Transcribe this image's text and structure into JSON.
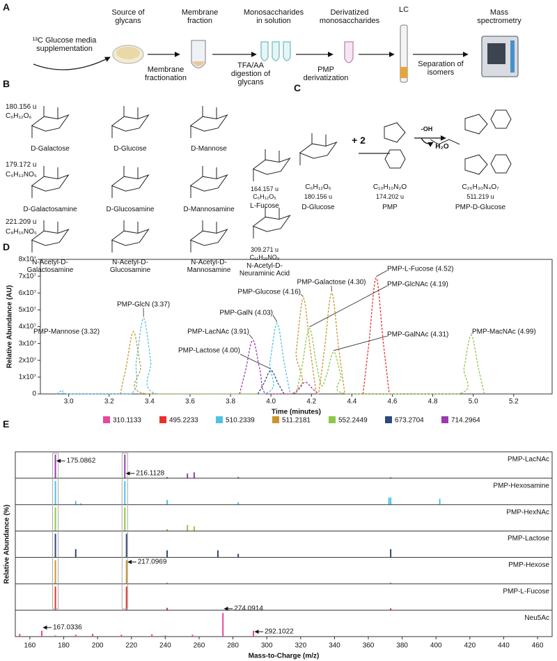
{
  "panel_a": {
    "label": "A",
    "steps": [
      "¹³C Glucose media supplementation",
      "Source of glycans",
      "Membrane fraction",
      "Membrane fractionation",
      "Monosaccharides in solution",
      "TFA/AA digestion of glycans",
      "Derivatized monosaccharides",
      "PMP derivatization",
      "LC",
      "Separation of isomers",
      "Mass spectrometry"
    ]
  },
  "panel_b": {
    "label": "B",
    "groups": [
      {
        "mass": "180.156 u",
        "formula": "C₆H₁₂O₆",
        "names": [
          "D-Galactose",
          "D-Glucose",
          "D-Mannose"
        ]
      },
      {
        "mass": "179.172 u",
        "formula": "C₆H₁₃NO₅",
        "names": [
          "D-Galactosamine",
          "D-Glucosamine",
          "D-Mannosamine"
        ]
      },
      {
        "mass": "221.209 u",
        "formula": "C₈H₁₅NO₆",
        "names": [
          "N-Acetyl-D-Galactosamine",
          "N-Acetyl-D-Glucosamine",
          "N-Acetyl-D-Mannosamine"
        ]
      },
      {
        "mass": "164.157 u",
        "formula": "C₆H₁₂O₅",
        "names": [
          "L-Fucose"
        ]
      },
      {
        "mass": "309.271 u",
        "formula": "C₁₁H₁₉NO₉",
        "names": [
          "N-Acetyl-D-Neuraminic Acid"
        ]
      }
    ]
  },
  "panel_c": {
    "label": "C",
    "reagent": "+ 2",
    "condition": "-OH",
    "byproduct": "H₂O",
    "compounds": [
      {
        "formula": "C₆H₁₂O₆",
        "mass": "180.156 u",
        "name": "D-Glucose"
      },
      {
        "formula": "C₁₀H₁₀N₂O",
        "mass": "174.202 u",
        "name": "PMP"
      },
      {
        "formula": "C₂₆H₃₀N₄O₇",
        "mass": "511.219 u",
        "name": "PMP-D-Glucose"
      }
    ]
  },
  "chart_data": [
    {
      "type": "line",
      "panel": "D",
      "xlabel": "Time (minutes)",
      "ylabel": "Relative Abundance (AU)",
      "xlim": [
        2.86,
        5.39
      ],
      "ylim": [
        0,
        80000000
      ],
      "xticks": [
        {
          "value": 3,
          "label": "3.0"
        },
        {
          "value": 3.2,
          "label": "3.2"
        },
        {
          "value": 3.4,
          "label": "3.4"
        },
        {
          "value": 3.6,
          "label": "3.6"
        },
        {
          "value": 3.8,
          "label": "3.8"
        },
        {
          "value": 4,
          "label": "4.0"
        },
        {
          "value": 4.2,
          "label": "4.2"
        },
        {
          "value": 4.4,
          "label": "4.4"
        },
        {
          "value": 4.6,
          "label": "4.6"
        },
        {
          "value": 4.8,
          "label": "4.8"
        },
        {
          "value": 5,
          "label": "5.0"
        },
        {
          "value": 5.2,
          "label": "5.2"
        }
      ],
      "yticks": [
        0,
        {
          "value": 10000000,
          "label": "1x10⁷"
        },
        {
          "value": 20000000,
          "label": "2x10⁷"
        },
        {
          "value": 30000000,
          "label": "3x10⁷"
        },
        {
          "value": 40000000,
          "label": "4x10⁷"
        },
        {
          "value": 50000000,
          "label": "5x10⁷"
        },
        {
          "value": 60000000,
          "label": "6x10⁷"
        },
        {
          "value": 70000000,
          "label": "7x10⁷"
        },
        {
          "value": 80000000,
          "label": "8x10⁷"
        }
      ],
      "series": [
        {
          "name": "310.1133",
          "color": "#e8489a",
          "x": [],
          "values": []
        },
        {
          "name": "495.2233",
          "color": "#e8302a",
          "x": [
            4.455,
            4.485,
            4.52,
            4.555,
            4.585
          ],
          "values": [
            0,
            31050000,
            69000000,
            31050000,
            0
          ]
        },
        {
          "name": "510.2339",
          "color": "#4cc3e6",
          "x": [
            2.94,
            2.97,
            3.0,
            3.305,
            3.335,
            3.37,
            3.405,
            3.435,
            3.965,
            3.995,
            4.03,
            4.065,
            4.095
          ],
          "values": [
            0,
            2000000,
            0,
            0,
            20250000,
            45000000,
            20250000,
            0,
            0,
            18900000,
            42000000,
            18900000,
            0
          ]
        },
        {
          "name": "511.2181",
          "color": "#c8962a",
          "x": [
            3.255,
            3.285,
            3.32,
            3.355,
            3.385,
            4.095,
            4.125,
            4.16,
            4.195,
            4.225,
            4.235,
            4.265,
            4.3,
            4.335,
            4.365
          ],
          "values": [
            0,
            16650000,
            37000000,
            16650000,
            0,
            0,
            25650000,
            57000000,
            25650000,
            0,
            0,
            27000000,
            60000000,
            27000000,
            0
          ]
        },
        {
          "name": "552.2449",
          "color": "#8cc84a",
          "x": [
            4.125,
            4.155,
            4.19,
            4.225,
            4.25,
            4.275,
            4.31,
            4.345,
            4.375,
            4.925,
            4.955,
            4.99,
            5.025,
            5.055
          ],
          "values": [
            0,
            17550000,
            39000000,
            17550000,
            5000000,
            11250000,
            25000000,
            11250000,
            0,
            0,
            15750000,
            35000000,
            15750000,
            0
          ]
        },
        {
          "name": "673.2704",
          "color": "#2a4a7a",
          "x": [
            3.935,
            3.965,
            4.0,
            4.035,
            4.065
          ],
          "values": [
            0,
            6300000,
            14000000,
            6300000,
            0
          ]
        },
        {
          "name": "714.2964",
          "color": "#9a3ab0",
          "x": [
            3.845,
            3.875,
            3.91,
            3.945,
            3.975,
            4.105,
            4.135,
            4.17,
            4.205,
            4.235
          ],
          "values": [
            0,
            14400000,
            32000000,
            14400000,
            0,
            0,
            3200000,
            7000000,
            3200000,
            0
          ]
        }
      ],
      "annotations": [
        "PMP-Mannose (3.32)",
        "PMP-GlcN (3.37)",
        "PMP-GalN (4.03)",
        "PMP-LacNAc (3.91)",
        "PMP-Lactose (4.00)",
        "PMP-Glucose (4.16)",
        "PMP-Galactose (4.30)",
        "PMP-L-Fucose (4.52)",
        "PMP-GlcNAc (4.19)",
        "PMP-GalNAc (4.31)",
        "PMP-MacNAc (4.99)"
      ]
    },
    {
      "type": "spectrum",
      "panel": "E",
      "xlabel": "Mass-to-Charge (m/z)",
      "ylabel": "Relative Abundance (%)",
      "xlim": [
        151.4,
        468.6
      ],
      "ylim": [
        0,
        100
      ],
      "xticks": [
        160,
        180,
        200,
        220,
        240,
        260,
        280,
        300,
        320,
        340,
        360,
        380,
        400,
        420,
        440,
        460
      ],
      "series": [
        {
          "name": "PMP-LacNAc",
          "color": "#9a3ab0",
          "x": [
            175.09,
            216.11,
            241.1,
            253.1,
            257.1,
            283.1,
            373.2
          ],
          "values": [
            100,
            100,
            5,
            20,
            25,
            5,
            4
          ]
        },
        {
          "name": "PMP-Hexosamine",
          "color": "#4cc3e6",
          "x": [
            175.09,
            187.1,
            190.1,
            216.11,
            241.1,
            283.1,
            372.2,
            373.2,
            402.2
          ],
          "values": [
            100,
            15,
            5,
            100,
            20,
            10,
            30,
            30,
            25
          ]
        },
        {
          "name": "PMP-HexNAc",
          "color": "#8cc84a",
          "x": [
            175.09,
            216.11,
            241.1,
            253.1,
            257.1
          ],
          "values": [
            100,
            100,
            8,
            25,
            20
          ]
        },
        {
          "name": "PMP-Lactose",
          "color": "#2a4a7a",
          "x": [
            175.09,
            187.1,
            217.1,
            241.1,
            271.1,
            283.1,
            373.2
          ],
          "values": [
            100,
            35,
            100,
            30,
            30,
            15,
            35
          ]
        },
        {
          "name": "PMP-Hexose",
          "color": "#c8962a",
          "x": [
            175.09,
            217.1,
            241.1,
            373.2
          ],
          "values": [
            100,
            100,
            5,
            5
          ]
        },
        {
          "name": "PMP-L-Fucose",
          "color": "#e8302a",
          "x": [
            175.09,
            217.1,
            241.1,
            373.2
          ],
          "values": [
            100,
            100,
            10,
            8
          ]
        },
        {
          "name": "Neu5Ac",
          "color": "#e8489a",
          "x": [
            154.0,
            167.03,
            175.09,
            187.1,
            197.1,
            214.1,
            232.1,
            240.1,
            256.1,
            274.09,
            292.1
          ],
          "values": [
            12,
            25,
            5,
            8,
            12,
            8,
            10,
            5,
            8,
            100,
            25
          ]
        }
      ],
      "annotations": [
        "175.0862",
        "216.1128",
        "217.0969",
        "167.0336",
        "274.0914",
        "292.1022"
      ]
    }
  ]
}
